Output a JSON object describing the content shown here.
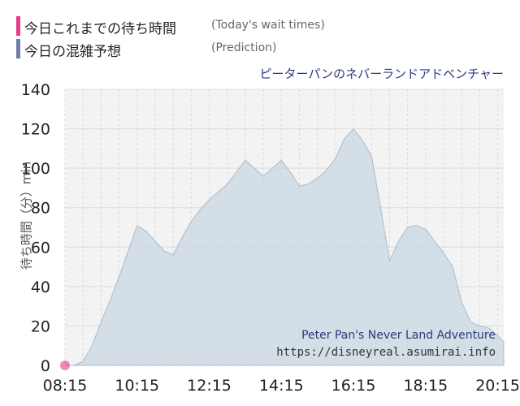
{
  "legend": {
    "items": [
      {
        "label": "今日これまでの待ち時間",
        "label_en": "(Today's wait times)",
        "color": "#e8398a"
      },
      {
        "label": "今日の混雑予想",
        "label_en": "(Prediction)",
        "color": "#6f7fa6"
      }
    ]
  },
  "ride": {
    "name_jp": "ピーターパンのネバーランドアドベンチャー",
    "name_en": "Peter Pan's Never Land Adventure",
    "site": "https://disneyreal.asumirai.info"
  },
  "chart_data": {
    "type": "area",
    "ylabel": "待ち時間（分）min",
    "ylim": [
      0,
      140
    ],
    "yticks": [
      0,
      20,
      40,
      60,
      80,
      100,
      120,
      140
    ],
    "xticks": [
      "08:15",
      "10:15",
      "12:15",
      "14:15",
      "16:15",
      "18:15",
      "20:15"
    ],
    "xlim_minutes": [
      495,
      1225
    ],
    "grid": true,
    "series": [
      {
        "name": "今日の混雑予想",
        "color": "#c9d7e3",
        "points": [
          [
            495,
            0
          ],
          [
            510,
            0
          ],
          [
            525,
            2
          ],
          [
            540,
            10
          ],
          [
            555,
            22
          ],
          [
            570,
            33
          ],
          [
            585,
            45
          ],
          [
            600,
            58
          ],
          [
            615,
            71
          ],
          [
            630,
            68
          ],
          [
            645,
            63
          ],
          [
            660,
            58
          ],
          [
            675,
            56
          ],
          [
            690,
            65
          ],
          [
            705,
            73
          ],
          [
            720,
            79
          ],
          [
            735,
            84
          ],
          [
            750,
            88
          ],
          [
            765,
            92
          ],
          [
            780,
            98
          ],
          [
            795,
            104
          ],
          [
            810,
            100
          ],
          [
            825,
            96
          ],
          [
            840,
            100
          ],
          [
            855,
            104
          ],
          [
            870,
            98
          ],
          [
            885,
            91
          ],
          [
            900,
            92
          ],
          [
            915,
            95
          ],
          [
            930,
            99
          ],
          [
            945,
            105
          ],
          [
            960,
            115
          ],
          [
            975,
            120
          ],
          [
            990,
            114
          ],
          [
            1005,
            106
          ],
          [
            1020,
            80
          ],
          [
            1035,
            53
          ],
          [
            1050,
            63
          ],
          [
            1065,
            70
          ],
          [
            1080,
            71
          ],
          [
            1095,
            69
          ],
          [
            1110,
            63
          ],
          [
            1125,
            57
          ],
          [
            1140,
            50
          ],
          [
            1155,
            32
          ],
          [
            1170,
            22
          ],
          [
            1185,
            20
          ],
          [
            1200,
            19
          ],
          [
            1215,
            15
          ],
          [
            1225,
            12
          ]
        ]
      },
      {
        "name": "今日これまでの待ち時間",
        "color": "#e8398a",
        "points": [
          [
            495,
            0
          ]
        ]
      }
    ]
  }
}
